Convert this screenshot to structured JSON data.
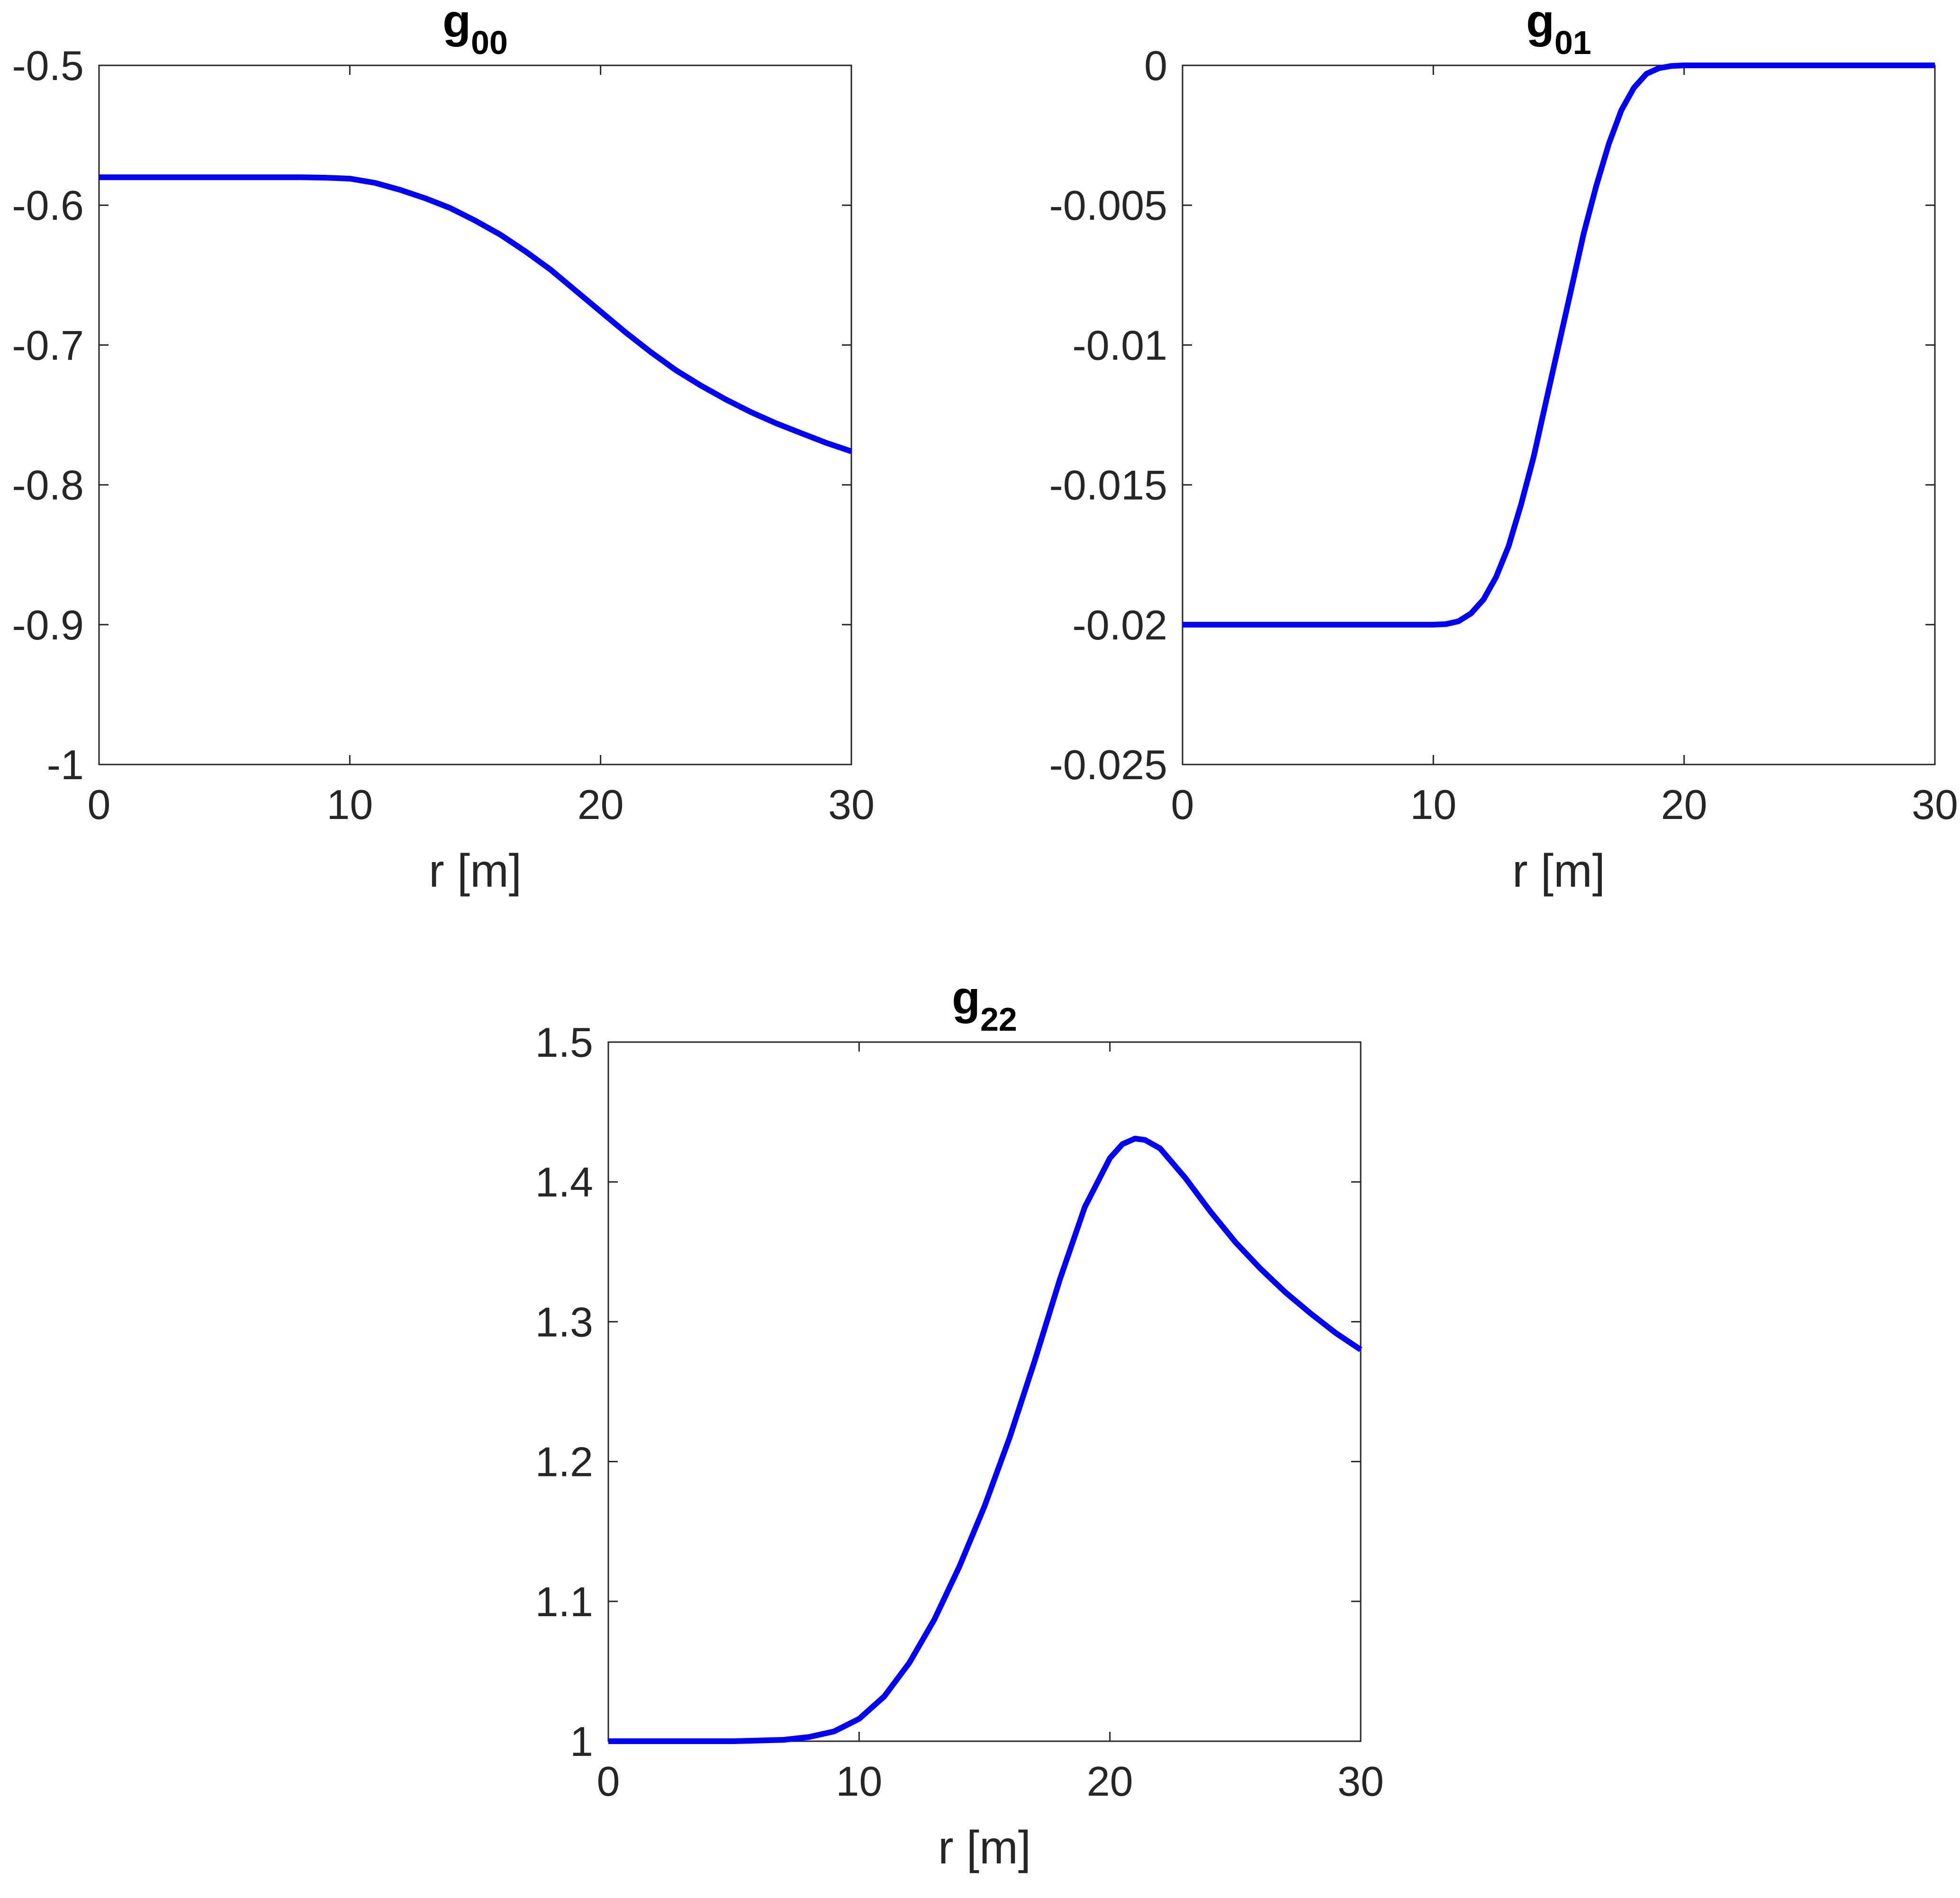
{
  "chart_data": [
    {
      "type": "line",
      "title": "g",
      "title_subscript": "00",
      "xlabel": "r [m]",
      "ylabel": "",
      "xlim": [
        0,
        30
      ],
      "ylim": [
        -1,
        -0.5
      ],
      "xticks": [
        0,
        10,
        20,
        30
      ],
      "xtick_labels": [
        "0",
        "10",
        "20",
        "30"
      ],
      "yticks": [
        -1,
        -0.9,
        -0.8,
        -0.7,
        -0.6,
        -0.5
      ],
      "ytick_labels": [
        "-1",
        "-0.9",
        "-0.8",
        "-0.7",
        "-0.6",
        "-0.5"
      ],
      "grid": false,
      "series": [
        {
          "color": "#0000ff",
          "x": [
            0,
            2,
            4,
            6,
            8,
            9,
            10,
            11,
            12,
            13,
            14,
            15,
            16,
            17,
            18,
            19,
            20,
            21,
            22,
            23,
            24,
            25,
            26,
            27,
            28,
            29,
            30
          ],
          "y": [
            -0.58,
            -0.58,
            -0.58,
            -0.58,
            -0.58,
            -0.5803,
            -0.581,
            -0.584,
            -0.589,
            -0.595,
            -0.602,
            -0.611,
            -0.621,
            -0.633,
            -0.646,
            -0.661,
            -0.676,
            -0.691,
            -0.705,
            -0.718,
            -0.729,
            -0.739,
            -0.748,
            -0.756,
            -0.763,
            -0.77,
            -0.776
          ]
        }
      ]
    },
    {
      "type": "line",
      "title": "g",
      "title_subscript": "01",
      "xlabel": "r [m]",
      "ylabel": "",
      "xlim": [
        0,
        30
      ],
      "ylim": [
        -0.025,
        0
      ],
      "xticks": [
        0,
        10,
        20,
        30
      ],
      "xtick_labels": [
        "0",
        "10",
        "20",
        "30"
      ],
      "yticks": [
        -0.025,
        -0.02,
        -0.015,
        -0.01,
        -0.005,
        0
      ],
      "ytick_labels": [
        "-0.025",
        "-0.02",
        "-0.015",
        "-0.01",
        "-0.005",
        "0"
      ],
      "grid": false,
      "series": [
        {
          "color": "#0000ff",
          "x": [
            0,
            5,
            10,
            10.5,
            11,
            11.5,
            12,
            12.5,
            13,
            13.5,
            14,
            14.5,
            15,
            15.5,
            16,
            16.5,
            17,
            17.5,
            18,
            18.5,
            19,
            19.5,
            20,
            25,
            30
          ],
          "y": [
            -0.02,
            -0.02,
            -0.02,
            -0.01998,
            -0.01988,
            -0.0196,
            -0.0191,
            -0.0183,
            -0.0172,
            -0.0157,
            -0.014,
            -0.012,
            -0.01,
            -0.008,
            -0.006,
            -0.0043,
            -0.0028,
            -0.0016,
            -0.0008,
            -0.0003,
            -0.0001,
            -2e-05,
            0,
            0,
            0
          ]
        }
      ]
    },
    {
      "type": "line",
      "title": "g",
      "title_subscript": "22",
      "xlabel": "r [m]",
      "ylabel": "",
      "xlim": [
        0,
        30
      ],
      "ylim": [
        1,
        1.5
      ],
      "xticks": [
        0,
        10,
        20,
        30
      ],
      "xtick_labels": [
        "0",
        "10",
        "20",
        "30"
      ],
      "yticks": [
        1,
        1.1,
        1.2,
        1.3,
        1.4,
        1.5
      ],
      "ytick_labels": [
        "1",
        "1.1",
        "1.2",
        "1.3",
        "1.4",
        "1.5"
      ],
      "grid": false,
      "series": [
        {
          "color": "#0000ff",
          "x": [
            0,
            5,
            7,
            8,
            9,
            10,
            11,
            12,
            13,
            14,
            15,
            16,
            17,
            18,
            19,
            20,
            20.5,
            21,
            21.4,
            22,
            23,
            24,
            25,
            26,
            27,
            28,
            29,
            30
          ],
          "y": [
            1,
            1,
            1.001,
            1.003,
            1.007,
            1.016,
            1.032,
            1.056,
            1.087,
            1.125,
            1.168,
            1.217,
            1.272,
            1.33,
            1.382,
            1.417,
            1.427,
            1.431,
            1.43,
            1.424,
            1.403,
            1.379,
            1.357,
            1.338,
            1.321,
            1.306,
            1.292,
            1.28
          ]
        }
      ]
    }
  ]
}
